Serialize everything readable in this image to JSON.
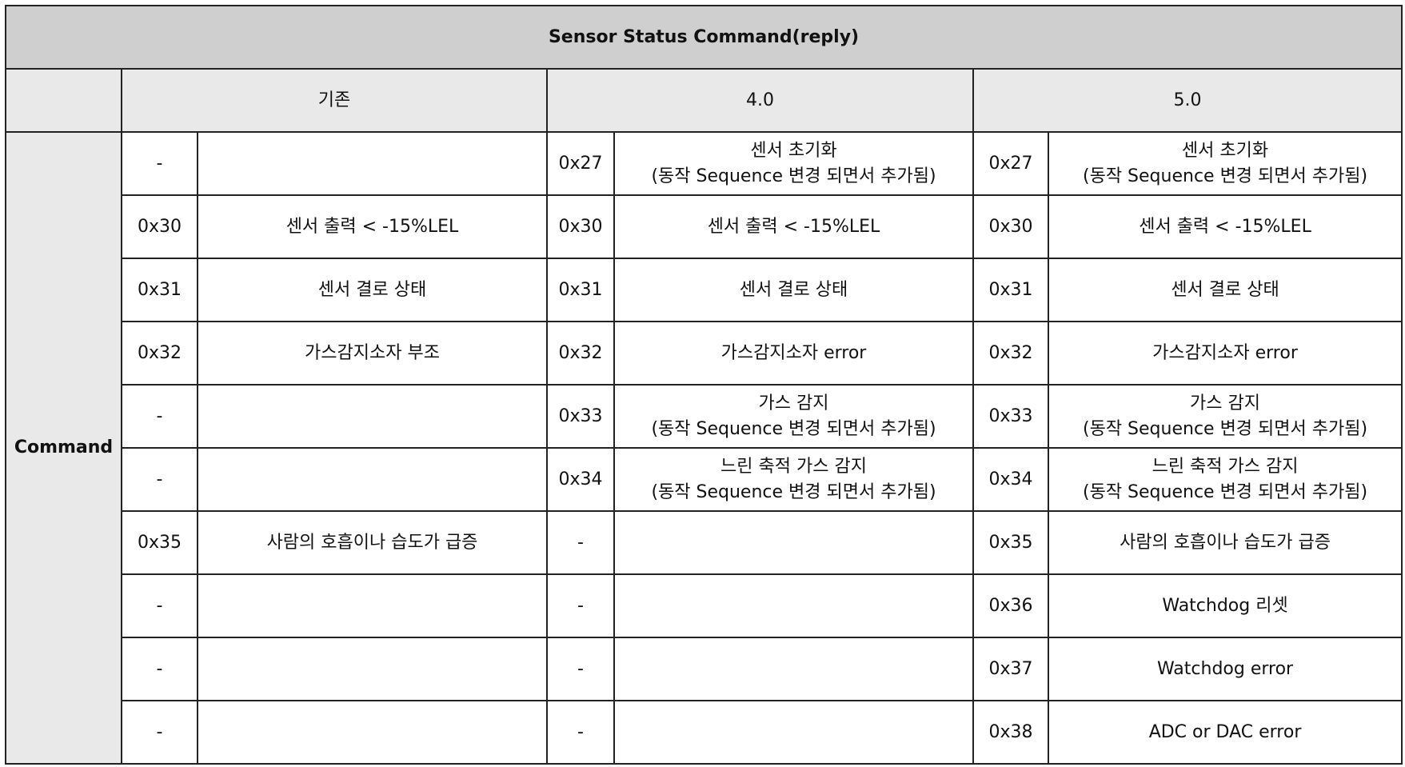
{
  "title": "Sensor Status Command(reply)",
  "headers": [
    "기존",
    "4.0",
    "5.0"
  ],
  "row_label": "Command",
  "rows": [
    {
      "old_code": "-",
      "old_desc": "",
      "v4_code": "0x27",
      "v4_desc": "센서 초기화",
      "v4_note": "(동작 Sequence 변경 되면서 추가됨)",
      "v5_code": "0x27",
      "v5_desc": "센서 초기화",
      "v5_note": "(동작 Sequence 변경 되면서 추가됨)"
    },
    {
      "old_code": "0x30",
      "old_desc": "센서 출력 < -15%LEL",
      "v4_code": "0x30",
      "v4_desc": "센서 출력 < -15%LEL",
      "v4_note": "",
      "v5_code": "0x30",
      "v5_desc": "센서 출력 < -15%LEL",
      "v5_note": ""
    },
    {
      "old_code": "0x31",
      "old_desc": "센서 결로 상태",
      "v4_code": "0x31",
      "v4_desc": "센서 결로 상태",
      "v4_note": "",
      "v5_code": "0x31",
      "v5_desc": "센서 결로 상태",
      "v5_note": ""
    },
    {
      "old_code": "0x32",
      "old_desc": "가스감지소자 부조",
      "v4_code": "0x32",
      "v4_desc": "가스감지소자 error",
      "v4_note": "",
      "v5_code": "0x32",
      "v5_desc": "가스감지소자 error",
      "v5_note": ""
    },
    {
      "old_code": "-",
      "old_desc": "",
      "v4_code": "0x33",
      "v4_desc": "가스 감지",
      "v4_note": "(동작 Sequence 변경 되면서 추가됨)",
      "v5_code": "0x33",
      "v5_desc": "가스 감지",
      "v5_note": "(동작 Sequence 변경 되면서 추가됨)"
    },
    {
      "old_code": "-",
      "old_desc": "",
      "v4_code": "0x34",
      "v4_desc": "느린 축적 가스 감지",
      "v4_note": "(동작 Sequence 변경 되면서 추가됨)",
      "v5_code": "0x34",
      "v5_desc": "느린 축적 가스 감지",
      "v5_note": "(동작 Sequence 변경 되면서 추가됨)"
    },
    {
      "old_code": "0x35",
      "old_desc": "사람의 호흡이나 습도가 급증",
      "v4_code": "-",
      "v4_desc": "",
      "v4_note": "",
      "v5_code": "0x35",
      "v5_desc": "사람의 호흡이나 습도가 급증",
      "v5_note": ""
    },
    {
      "old_code": "-",
      "old_desc": "",
      "v4_code": "-",
      "v4_desc": "",
      "v4_note": "",
      "v5_code": "0x36",
      "v5_desc": "Watchdog 리셋",
      "v5_note": ""
    },
    {
      "old_code": "-",
      "old_desc": "",
      "v4_code": "-",
      "v4_desc": "",
      "v4_note": "",
      "v5_code": "0x37",
      "v5_desc": "Watchdog error",
      "v5_note": ""
    },
    {
      "old_code": "-",
      "old_desc": "",
      "v4_code": "-",
      "v4_desc": "",
      "v4_note": "",
      "v5_code": "0x38",
      "v5_desc": "ADC or DAC error",
      "v5_note": ""
    }
  ]
}
